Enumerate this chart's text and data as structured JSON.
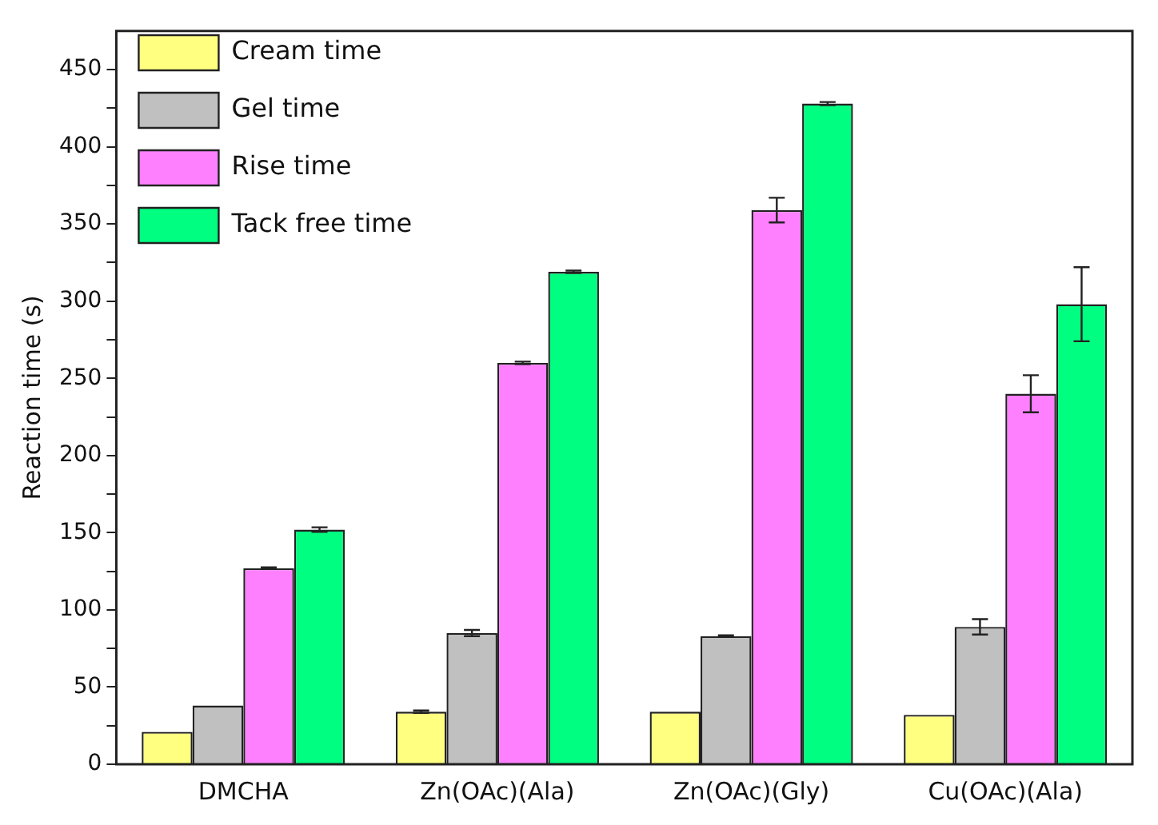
{
  "chart_data": {
    "type": "bar",
    "ylabel": "Reaction time (s)",
    "categories": [
      "DMCHA",
      "Zn(OAc)(Ala)",
      "Zn(OAc)(Gly)",
      "Cu(OAc)(Ala)"
    ],
    "series": [
      {
        "name": "Cream time",
        "color": "#ffff80",
        "values": [
          21,
          34,
          34,
          32
        ],
        "errors": [
          null,
          0.8,
          null,
          null
        ]
      },
      {
        "name": "Gel time",
        "color": "#c0c0c0",
        "values": [
          38,
          85,
          83,
          89
        ],
        "errors": [
          null,
          2,
          0.5,
          5
        ]
      },
      {
        "name": "Rise time",
        "color": "#ff80ff",
        "values": [
          127,
          260,
          359,
          240
        ],
        "errors": [
          0.5,
          0.8,
          8,
          12
        ]
      },
      {
        "name": "Tack free time",
        "color": "#00ff80",
        "values": [
          152,
          319,
          428,
          298
        ],
        "errors": [
          1.5,
          0.8,
          1,
          24
        ]
      }
    ],
    "ylim": [
      0,
      475
    ],
    "yticks": [
      0,
      {
        "value": 25,
        "label": null
      },
      50,
      {
        "value": 75,
        "label": null
      },
      100,
      {
        "value": 125,
        "label": null
      },
      150,
      {
        "value": 175,
        "label": null
      },
      200,
      {
        "value": 225,
        "label": null
      },
      250,
      {
        "value": 275,
        "label": null
      },
      300,
      {
        "value": 325,
        "label": null
      },
      350,
      {
        "value": 375,
        "label": null
      },
      400,
      {
        "value": 425,
        "label": null
      },
      450
    ],
    "grid": false,
    "legend": "top left"
  }
}
